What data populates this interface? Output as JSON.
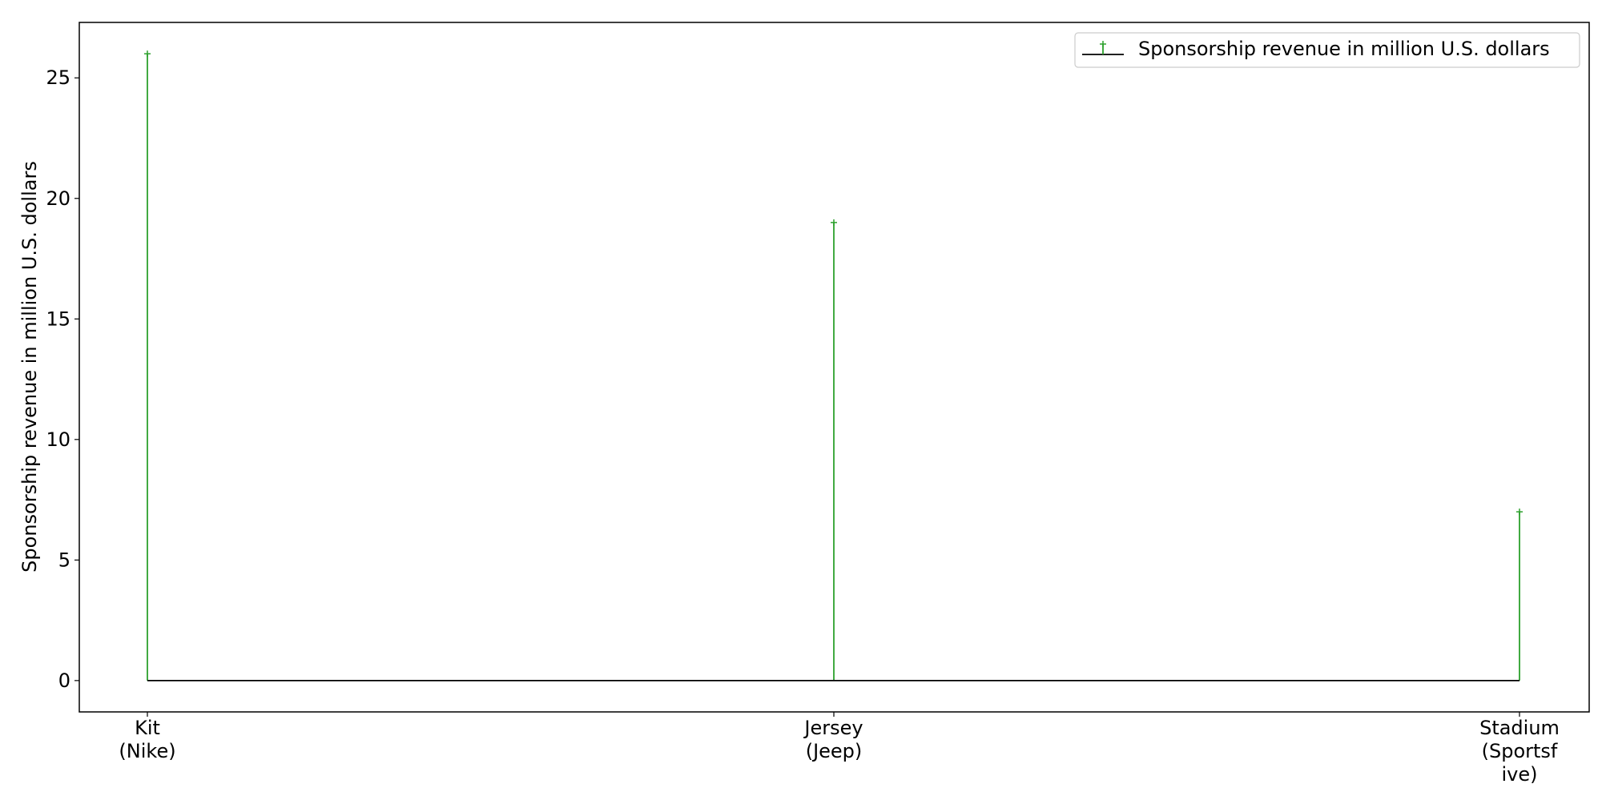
{
  "chart_data": {
    "type": "stem",
    "title": "",
    "xlabel": "",
    "ylabel": "Sponsorship revenue in million U.S. dollars",
    "categories": [
      "Kit\n(Nike)",
      "Jersey\n(Jeep)",
      "Stadium\n(Sportsf\nive)"
    ],
    "series": [
      {
        "name": "Sponsorship revenue in million U.S. dollars",
        "values": [
          26,
          19,
          7
        ]
      }
    ],
    "ylim": [
      -1.3,
      27.3
    ],
    "yticks": [
      0,
      5,
      10,
      15,
      20,
      25
    ],
    "grid": false,
    "legend": "top-right",
    "colors": {
      "stem": "#2ca02c",
      "baseline": "#000000",
      "axes": "#000000"
    }
  }
}
